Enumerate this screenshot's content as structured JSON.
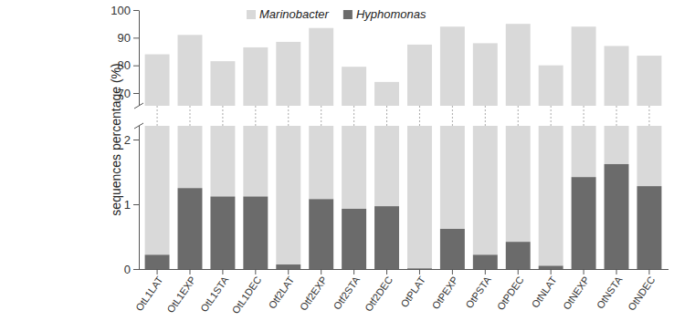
{
  "chart_data": {
    "type": "bar",
    "stacked": true,
    "grid": false,
    "legend": "top",
    "y_label": "sequences percentage (%)",
    "categories": [
      "OtL1LAT",
      "OtL1EXP",
      "OtL1STA",
      "OtL1DEC",
      "Otf2LAT",
      "Otf2EXP",
      "Otf2STA",
      "Otf2DEC",
      "OtPLAT",
      "OtPEXP",
      "OtPSTA",
      "OtPDEC",
      "OtNLAT",
      "OtNEXP",
      "OtNSTA",
      "OtNDEC"
    ],
    "series": [
      {
        "name": "Marinobacter",
        "color": "#d9d9d9",
        "values": [
          83.78,
          89.75,
          80.38,
          85.38,
          88.43,
          92.42,
          78.57,
          73.03,
          87.49,
          93.38,
          87.78,
          94.58,
          79.95,
          92.58,
          85.38,
          82.22
        ]
      },
      {
        "name": "Hyphomonas",
        "color": "#6b6b6b",
        "values": [
          0.22,
          1.25,
          1.12,
          1.12,
          0.07,
          1.08,
          0.93,
          0.97,
          0.01,
          0.62,
          0.22,
          0.42,
          0.05,
          1.42,
          1.62,
          1.28
        ]
      }
    ],
    "ylim": [
      0,
      100
    ],
    "yticks": [
      0,
      1,
      2,
      70,
      80,
      90,
      100
    ]
  }
}
